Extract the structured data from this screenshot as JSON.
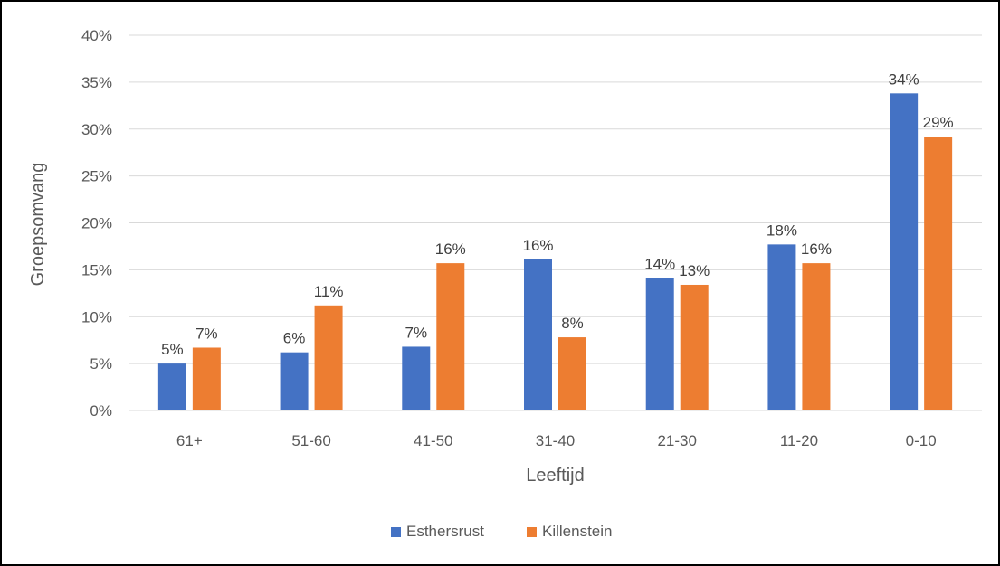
{
  "chart_data": {
    "type": "bar",
    "title": "",
    "xlabel": "Leeftijd",
    "ylabel": "Groepsomvang",
    "categories": [
      "61+",
      "51-60",
      "41-50",
      "31-40",
      "21-30",
      "11-20",
      "0-10"
    ],
    "ylim": [
      0,
      40
    ],
    "y_ticks": [
      "0%",
      "5%",
      "10%",
      "15%",
      "20%",
      "25%",
      "30%",
      "35%",
      "40%"
    ],
    "grid": true,
    "legend_position": "bottom",
    "series": [
      {
        "name": "Esthersrust",
        "color": "#4472C4",
        "values": [
          5.0,
          6.2,
          6.8,
          16.1,
          14.1,
          17.7,
          33.8
        ],
        "labels": [
          "5%",
          "6%",
          "7%",
          "16%",
          "14%",
          "18%",
          "34%"
        ]
      },
      {
        "name": "Killenstein",
        "color": "#ED7D31",
        "values": [
          6.7,
          11.2,
          15.7,
          7.8,
          13.4,
          15.7,
          29.2
        ],
        "labels": [
          "7%",
          "11%",
          "16%",
          "8%",
          "13%",
          "16%",
          "29%"
        ]
      }
    ]
  }
}
